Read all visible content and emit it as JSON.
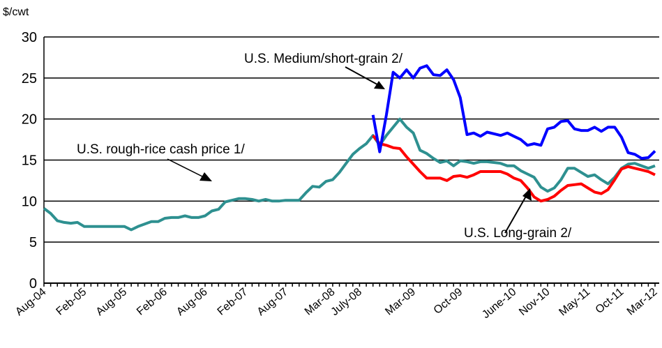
{
  "chart_data": {
    "type": "line",
    "y_label": "$/cwt",
    "categories": [
      "Aug-04",
      null,
      null,
      null,
      null,
      null,
      "Feb-05",
      null,
      null,
      null,
      null,
      null,
      "Aug-05",
      null,
      null,
      null,
      null,
      null,
      "Feb-06",
      null,
      null,
      null,
      null,
      null,
      "Aug-06",
      null,
      null,
      null,
      null,
      null,
      "Feb-07",
      null,
      null,
      null,
      null,
      null,
      "Aug-07",
      null,
      null,
      null,
      null,
      null,
      null,
      "Mar-08",
      null,
      null,
      null,
      "July-08",
      null,
      null,
      null,
      null,
      null,
      null,
      null,
      "Mar-09",
      null,
      null,
      null,
      null,
      null,
      null,
      "Oct-09",
      null,
      null,
      null,
      null,
      null,
      null,
      null,
      "June-10",
      null,
      null,
      null,
      null,
      "Nov-10",
      null,
      null,
      null,
      null,
      null,
      "May-11",
      null,
      null,
      null,
      null,
      "Oct-11",
      null,
      null,
      null,
      null,
      "Mar-12"
    ],
    "series": [
      {
        "name": "U.S. rough-rice cash price 1/",
        "color": "#2e9090",
        "values": [
          9.1,
          8.5,
          7.6,
          7.4,
          7.3,
          7.4,
          6.9,
          6.9,
          6.9,
          6.9,
          6.9,
          6.9,
          6.9,
          6.5,
          6.9,
          7.2,
          7.5,
          7.5,
          7.9,
          8.0,
          8.0,
          8.2,
          8.0,
          8.0,
          8.2,
          8.8,
          9.0,
          9.9,
          10.1,
          10.3,
          10.3,
          10.2,
          10.0,
          10.2,
          10.0,
          10.0,
          10.1,
          10.1,
          10.1,
          11.0,
          11.8,
          11.7,
          12.4,
          12.6,
          13.5,
          14.6,
          15.7,
          16.4,
          17.0,
          18.0,
          16.8,
          18.0,
          19.0,
          20.0,
          19.0,
          18.3,
          16.2,
          15.8,
          15.2,
          14.7,
          14.9,
          14.3,
          14.9,
          14.8,
          14.6,
          14.8,
          14.8,
          14.7,
          14.6,
          14.3,
          14.3,
          13.7,
          13.3,
          12.9,
          11.7,
          11.2,
          11.6,
          12.6,
          14.0,
          14.0,
          13.5,
          13.0,
          13.2,
          12.6,
          12.1,
          12.9,
          14.0,
          14.5,
          14.6,
          14.3,
          14.0,
          14.3
        ]
      },
      {
        "name": "U.S. Long-grain 2/",
        "color": "#ff0000",
        "values": [
          null,
          null,
          null,
          null,
          null,
          null,
          null,
          null,
          null,
          null,
          null,
          null,
          null,
          null,
          null,
          null,
          null,
          null,
          null,
          null,
          null,
          null,
          null,
          null,
          null,
          null,
          null,
          null,
          null,
          null,
          null,
          null,
          null,
          null,
          null,
          null,
          null,
          null,
          null,
          null,
          null,
          null,
          null,
          null,
          null,
          null,
          null,
          null,
          null,
          18.0,
          17.0,
          16.8,
          16.5,
          16.4,
          15.4,
          14.5,
          13.6,
          12.8,
          12.8,
          12.8,
          12.5,
          13.0,
          13.1,
          12.9,
          13.2,
          13.6,
          13.6,
          13.6,
          13.6,
          13.3,
          12.8,
          12.5,
          11.6,
          10.5,
          10.0,
          10.2,
          10.6,
          11.3,
          11.9,
          12.0,
          12.1,
          11.6,
          11.1,
          10.9,
          11.4,
          12.6,
          13.9,
          14.2,
          14.0,
          13.8,
          13.6,
          13.2
        ]
      },
      {
        "name": "U.S. Medium/short-grain 2/",
        "color": "#0000ff",
        "values": [
          null,
          null,
          null,
          null,
          null,
          null,
          null,
          null,
          null,
          null,
          null,
          null,
          null,
          null,
          null,
          null,
          null,
          null,
          null,
          null,
          null,
          null,
          null,
          null,
          null,
          null,
          null,
          null,
          null,
          null,
          null,
          null,
          null,
          null,
          null,
          null,
          null,
          null,
          null,
          null,
          null,
          null,
          null,
          null,
          null,
          null,
          null,
          null,
          null,
          20.5,
          16.0,
          20.5,
          25.7,
          25.0,
          26.0,
          25.0,
          26.2,
          26.5,
          25.4,
          25.3,
          26.0,
          24.8,
          22.6,
          18.1,
          18.3,
          17.9,
          18.4,
          18.2,
          18.0,
          18.3,
          17.9,
          17.5,
          16.8,
          17.0,
          16.8,
          18.8,
          19.0,
          19.7,
          19.8,
          18.8,
          18.6,
          18.6,
          19.0,
          18.5,
          19.0,
          19.0,
          17.8,
          15.9,
          15.7,
          15.2,
          15.3,
          16.1
        ]
      }
    ],
    "ylim": [
      0,
      30
    ],
    "yticks": [
      0,
      5,
      10,
      15,
      20,
      25,
      30
    ],
    "grid": true
  }
}
